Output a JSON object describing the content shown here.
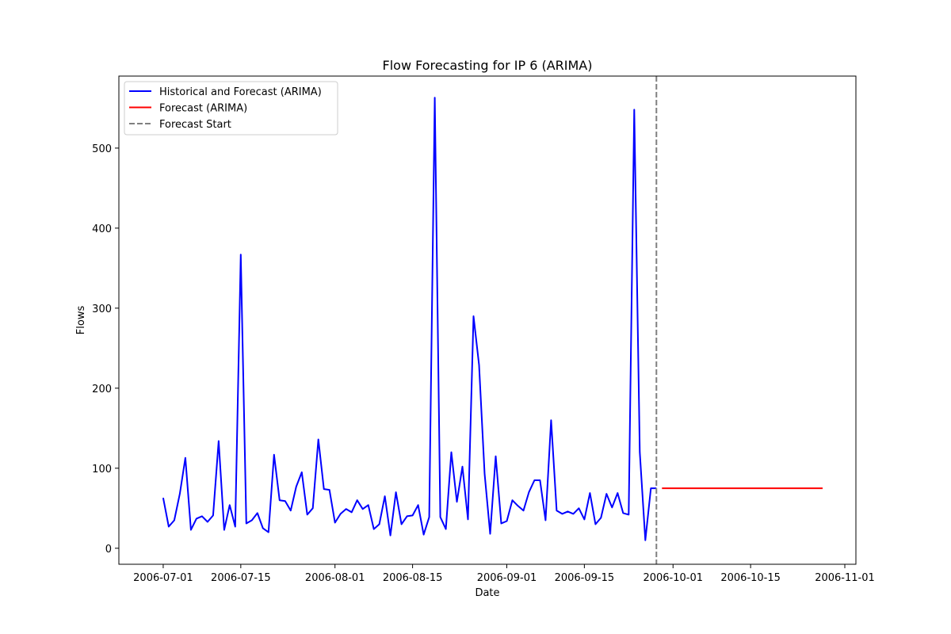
{
  "chart_data": {
    "type": "line",
    "title": "Flow Forecasting for IP 6 (ARIMA)",
    "xlabel": "Date",
    "ylabel": "Flows",
    "xlim": [
      "2006-06-23",
      "2006-11-03"
    ],
    "ylim": [
      -20,
      590
    ],
    "x_ticks": [
      "2006-07-01",
      "2006-07-15",
      "2006-08-01",
      "2006-08-15",
      "2006-09-01",
      "2006-09-15",
      "2006-10-01",
      "2006-10-15",
      "2006-11-01"
    ],
    "y_ticks": [
      0,
      100,
      200,
      300,
      400,
      500
    ],
    "grid": false,
    "legend_position": "upper-left",
    "forecast_start": "2006-09-28",
    "series": [
      {
        "name": "Historical and Forecast (ARIMA)",
        "color": "#0000ff",
        "style": "solid",
        "start_date": "2006-07-01",
        "values": [
          63,
          27,
          35,
          68,
          113,
          23,
          37,
          40,
          33,
          41,
          134,
          23,
          54,
          27,
          367,
          31,
          35,
          44,
          25,
          20,
          117,
          60,
          59,
          47,
          77,
          95,
          42,
          50,
          136,
          74,
          73,
          32,
          43,
          49,
          45,
          60,
          49,
          54,
          24,
          30,
          65,
          16,
          70,
          30,
          40,
          41,
          54,
          17,
          39,
          563,
          39,
          24,
          120,
          58,
          102,
          36,
          290,
          229,
          93,
          18,
          115,
          31,
          34,
          60,
          53,
          47,
          70,
          85,
          85,
          35,
          160,
          47,
          43,
          46,
          43,
          50,
          36,
          69,
          30,
          38,
          68,
          51,
          69,
          44,
          42,
          548,
          120,
          10,
          75,
          75
        ]
      },
      {
        "name": "Forecast (ARIMA)",
        "color": "#ff0000",
        "style": "solid",
        "points": [
          [
            "2006-09-29",
            75
          ],
          [
            "2006-10-28",
            75
          ]
        ]
      },
      {
        "name": "Forecast Start",
        "color": "#808080",
        "style": "dashed"
      }
    ]
  }
}
